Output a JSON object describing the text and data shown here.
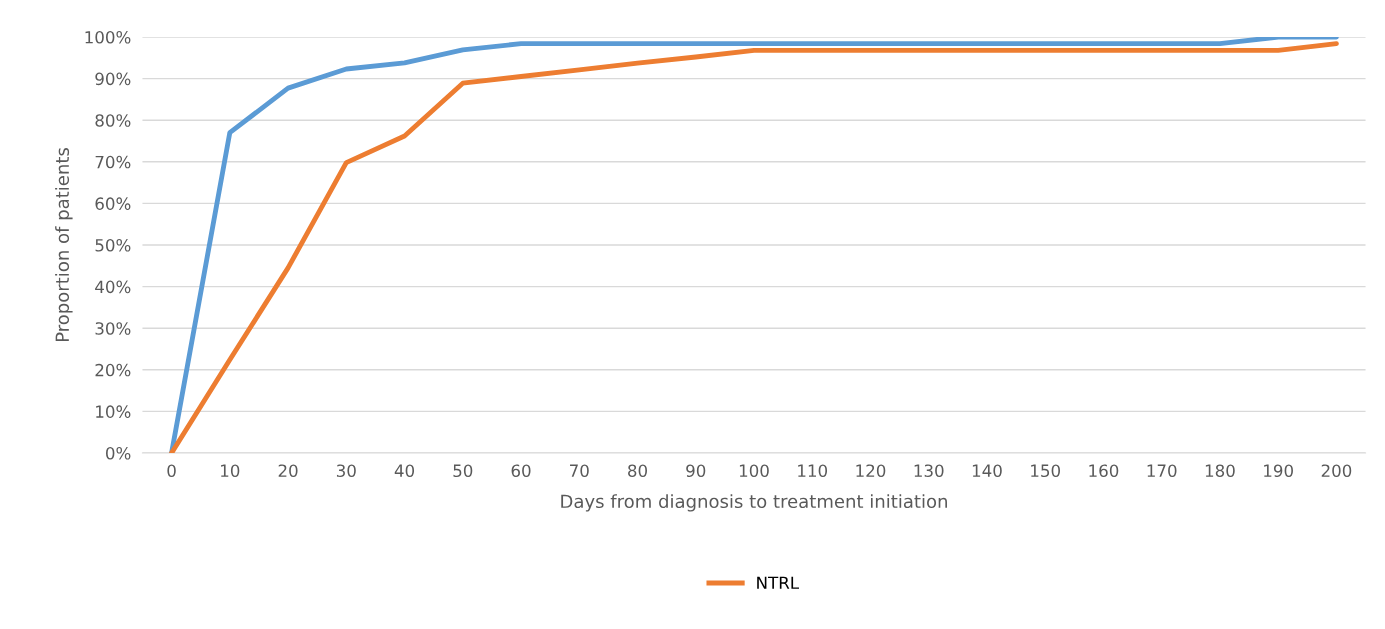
{
  "chart_data": {
    "type": "line",
    "xlabel": "Days from diagnosis to treatment initiation",
    "ylabel": "Proportion of patients",
    "categories": [
      "0",
      "10",
      "20",
      "30",
      "40",
      "50",
      "60",
      "70",
      "80",
      "90",
      "100",
      "110",
      "120",
      "130",
      "140",
      "150",
      "160",
      "170",
      "180",
      "190",
      "200"
    ],
    "series": [
      {
        "color": "#5b9bd5",
        "values": [
          0,
          77,
          87.7,
          92.3,
          93.8,
          96.9,
          98.4,
          98.4,
          98.4,
          98.4,
          98.4,
          98.4,
          98.4,
          98.4,
          98.4,
          98.4,
          98.4,
          98.4,
          98.4,
          100,
          100
        ]
      },
      {
        "name": "NTRL",
        "color": "#ed7d31",
        "values": [
          0,
          22.4,
          44.5,
          69.8,
          76.2,
          88.9,
          90.5,
          92.1,
          93.7,
          95.2,
          96.8,
          96.8,
          96.8,
          96.8,
          96.8,
          96.8,
          96.8,
          96.8,
          96.8,
          96.8,
          98.4
        ]
      }
    ],
    "ylim": [
      0,
      100
    ],
    "yticks": [
      {
        "value": 0,
        "label": "0%"
      },
      {
        "value": 10,
        "label": "10%"
      },
      {
        "value": 20,
        "label": "20%"
      },
      {
        "value": 30,
        "label": "30%"
      },
      {
        "value": 40,
        "label": "40%"
      },
      {
        "value": 50,
        "label": "50%"
      },
      {
        "value": 60,
        "label": "60%"
      },
      {
        "value": 70,
        "label": "70%"
      },
      {
        "value": 80,
        "label": "80%"
      },
      {
        "value": 90,
        "label": "90%"
      },
      {
        "value": 100,
        "label": "100%"
      }
    ],
    "grid": "y",
    "legend": "bottom",
    "marker": "none",
    "line_style": "solid"
  }
}
